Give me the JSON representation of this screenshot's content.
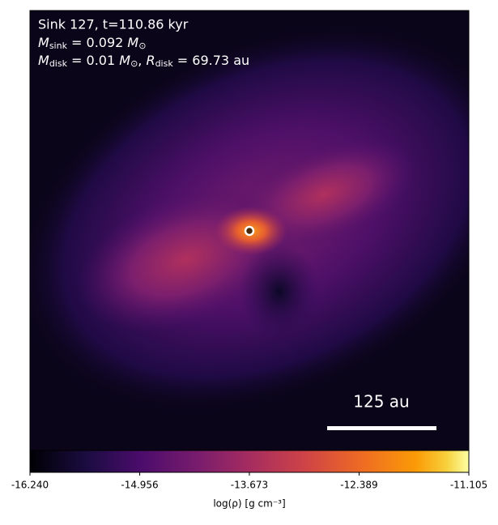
{
  "chart_data": {
    "type": "image",
    "annotation": {
      "sink_line": "Sink 127, t=110.86 kyr",
      "mass_symbol": "M",
      "mass_sub": "sink",
      "mass_value": " = 0.092 ",
      "mass_unit": "M",
      "mass_unit_sub": "⊙",
      "disk_symbol": "M",
      "disk_sub": "disk",
      "disk_value": " = 0.01 ",
      "disk_unit": "M",
      "disk_unit_sub": "⊙",
      "sep": ", ",
      "radius_symbol": "R",
      "radius_sub": "disk",
      "radius_value": " = 69.73 au"
    },
    "scale_bar_label": "125 au",
    "colorbar": {
      "label": "log(ρ) [g cm⁻³]",
      "colormap": "inferno",
      "lim": [
        -16.24,
        -11.105
      ],
      "ticks": [
        {
          "value": -16.24,
          "label": "-16.240"
        },
        {
          "value": -14.956,
          "label": "-14.956"
        },
        {
          "value": -13.673,
          "label": "-13.673"
        },
        {
          "value": -12.389,
          "label": "-12.389"
        },
        {
          "value": -11.105,
          "label": "-11.105"
        }
      ]
    }
  }
}
